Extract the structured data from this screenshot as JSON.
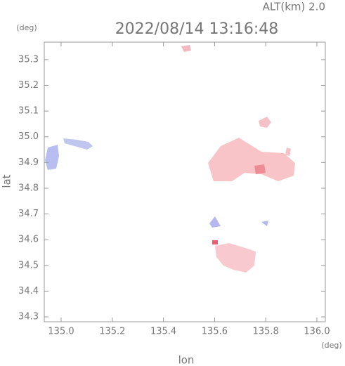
{
  "chart_data": {
    "type": "map",
    "altitude_label": "ALT(km) 2.0",
    "title": "2022/08/14 13:16:48",
    "y_unit": "(deg)",
    "x_unit": "(deg)",
    "xlabel": "lon",
    "ylabel": "lat",
    "xlim": [
      134.934,
      136.033
    ],
    "ylim": [
      34.281,
      35.368
    ],
    "xticks": [
      {
        "value": 135,
        "label": "135.0"
      },
      135.2,
      135.4,
      135.6,
      135.8,
      {
        "value": 136,
        "label": "136.0"
      }
    ],
    "yticks": [
      34.3,
      34.4,
      34.5,
      34.6,
      34.7,
      34.8,
      34.9,
      {
        "value": 35,
        "label": "35.0"
      },
      35.1,
      35.2,
      35.3
    ]
  }
}
